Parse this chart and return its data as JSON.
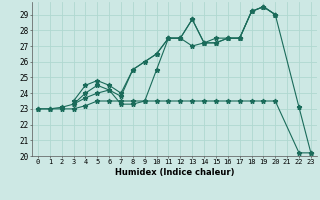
{
  "xlabel": "Humidex (Indice chaleur)",
  "xlim": [
    -0.5,
    23.5
  ],
  "ylim": [
    20,
    29.8
  ],
  "yticks": [
    20,
    21,
    22,
    23,
    24,
    25,
    26,
    27,
    28,
    29
  ],
  "xticks": [
    0,
    1,
    2,
    3,
    4,
    5,
    6,
    7,
    8,
    9,
    10,
    11,
    12,
    13,
    14,
    15,
    16,
    17,
    18,
    19,
    20,
    21,
    22,
    23
  ],
  "bg_color": "#cde8e4",
  "line_color": "#1a6b5a",
  "grid_color": "#b0d8d0",
  "series": [
    {
      "x": [
        0,
        1,
        2,
        3,
        4,
        5,
        6,
        7,
        8,
        9,
        10,
        11,
        12,
        13,
        14,
        15,
        16,
        17,
        18,
        19,
        20,
        22,
        23
      ],
      "y": [
        23,
        23,
        23,
        23,
        23.2,
        23.5,
        23.5,
        23.5,
        23.5,
        23.5,
        23.5,
        23.5,
        23.5,
        23.5,
        23.5,
        23.5,
        23.5,
        23.5,
        23.5,
        23.5,
        23.5,
        20.2,
        20.2
      ]
    },
    {
      "x": [
        3,
        4,
        5,
        6,
        7,
        8,
        9,
        10,
        11,
        12,
        13,
        14,
        15,
        16,
        17,
        18,
        19,
        20
      ],
      "y": [
        23.5,
        24.5,
        24.8,
        24.5,
        24.0,
        25.5,
        26.0,
        26.5,
        27.5,
        27.5,
        28.7,
        27.2,
        27.2,
        27.5,
        27.5,
        29.2,
        29.5,
        29.0
      ]
    },
    {
      "x": [
        3,
        4,
        5,
        6,
        7,
        8,
        10,
        11,
        12,
        13,
        14,
        15,
        16,
        17,
        18,
        19,
        20
      ],
      "y": [
        23.3,
        24.0,
        24.5,
        24.2,
        23.8,
        25.5,
        26.5,
        27.5,
        27.5,
        27.0,
        27.2,
        27.5,
        27.5,
        27.5,
        29.2,
        29.5,
        29.0
      ]
    },
    {
      "x": [
        0,
        1,
        2,
        3,
        4,
        5,
        6,
        7,
        8,
        9,
        10,
        11,
        12,
        13,
        14,
        15,
        16,
        17,
        18,
        19,
        20,
        22,
        23
      ],
      "y": [
        23,
        23,
        23.1,
        23.3,
        23.7,
        24.0,
        24.2,
        23.3,
        23.3,
        23.5,
        25.5,
        27.5,
        27.5,
        28.7,
        27.2,
        27.2,
        27.5,
        27.5,
        29.2,
        29.5,
        29.0,
        23.1,
        20.2
      ]
    }
  ]
}
